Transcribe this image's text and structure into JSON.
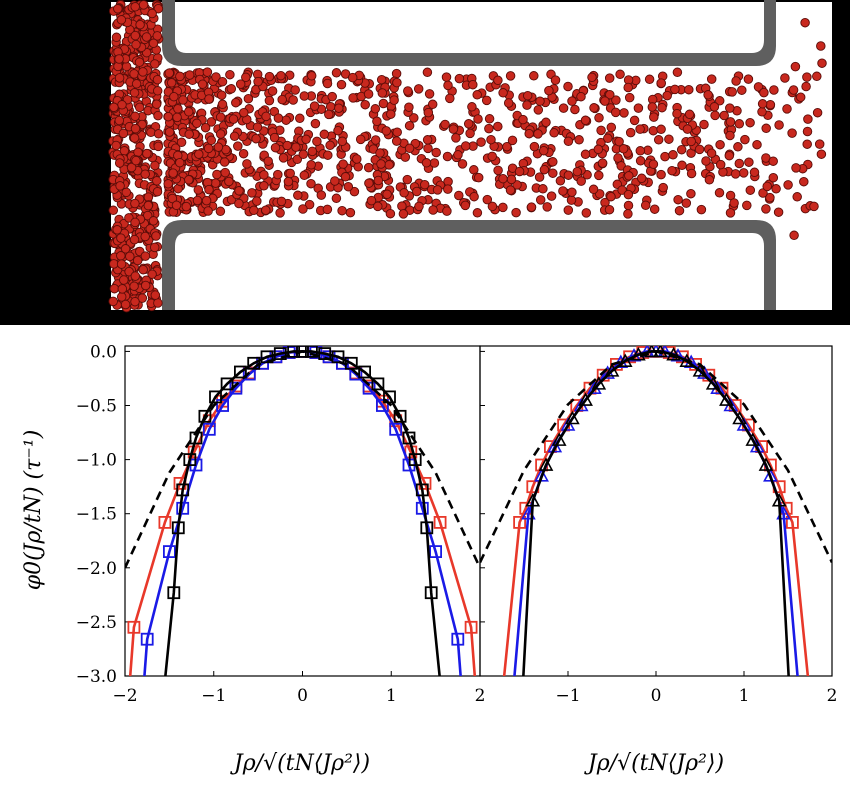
{
  "colors": {
    "background_black": "#000000",
    "channel_wall": "#5f5f5f",
    "particle": "#c8281e",
    "particle_edge": "#5a0c08",
    "series_red": "#e8382a",
    "series_blue": "#1a1ae6",
    "series_black": "#000000",
    "dashed_reference": "#000000"
  },
  "chart_data": [
    {
      "type": "line",
      "panel": "left",
      "ylabel": "φ0(Jρ/tN) (τ⁻¹)",
      "xlabel": "Jρ/√(tN⟨Jρ²⟩)",
      "xlim": [
        -2,
        2
      ],
      "ylim": [
        -3.0,
        0.05
      ],
      "xticks": [
        -2,
        -1,
        0,
        1,
        2
      ],
      "yticks": [
        0.0,
        -0.5,
        -1.0,
        -1.5,
        -2.0,
        -2.5,
        -3.0
      ],
      "xtick_labels": [
        "−2",
        "−1",
        "0",
        "1",
        "2"
      ],
      "ytick_labels": [
        "0.0",
        "−0.5",
        "−1.0",
        "−1.5",
        "−2.0",
        "−2.5",
        "−3.0"
      ],
      "legend": "none",
      "grid": false,
      "series": [
        {
          "color": "red",
          "line": "solid",
          "marker": "square",
          "x": [
            -1.9,
            -1.55,
            -1.38,
            -1.22,
            -1.05,
            -0.9,
            -0.75,
            -0.6,
            -0.45,
            -0.3,
            -0.15,
            0,
            0.15,
            0.3,
            0.45,
            0.6,
            0.75,
            0.9,
            1.05,
            1.22,
            1.38,
            1.55,
            1.9
          ],
          "y": [
            -2.55,
            -1.58,
            -1.22,
            -0.93,
            -0.64,
            -0.46,
            -0.32,
            -0.2,
            -0.11,
            -0.05,
            -0.01,
            0,
            -0.01,
            -0.05,
            -0.11,
            -0.2,
            -0.32,
            -0.46,
            -0.64,
            -0.93,
            -1.22,
            -1.58,
            -2.55
          ]
        },
        {
          "color": "blue",
          "line": "solid",
          "marker": "square",
          "x": [
            -1.75,
            -1.5,
            -1.35,
            -1.2,
            -1.05,
            -0.9,
            -0.75,
            -0.6,
            -0.45,
            -0.3,
            -0.15,
            0,
            0.15,
            0.3,
            0.45,
            0.6,
            0.75,
            0.9,
            1.05,
            1.2,
            1.35,
            1.5,
            1.75
          ],
          "y": [
            -2.66,
            -1.85,
            -1.45,
            -1.05,
            -0.72,
            -0.5,
            -0.34,
            -0.21,
            -0.11,
            -0.05,
            -0.01,
            0,
            -0.01,
            -0.05,
            -0.11,
            -0.21,
            -0.34,
            -0.5,
            -0.72,
            -1.05,
            -1.45,
            -1.85,
            -2.66
          ]
        },
        {
          "color": "black",
          "line": "solid",
          "marker": "square",
          "x": [
            -1.45,
            -1.4,
            -1.35,
            -1.27,
            -1.2,
            -1.1,
            -0.98,
            -0.85,
            -0.7,
            -0.55,
            -0.4,
            -0.25,
            -0.1,
            0,
            0.1,
            0.25,
            0.4,
            0.55,
            0.7,
            0.85,
            0.98,
            1.1,
            1.2,
            1.27,
            1.35,
            1.4,
            1.45
          ],
          "y": [
            -2.23,
            -1.63,
            -1.28,
            -1.0,
            -0.8,
            -0.6,
            -0.42,
            -0.3,
            -0.19,
            -0.11,
            -0.05,
            -0.02,
            0,
            0,
            0,
            -0.02,
            -0.05,
            -0.11,
            -0.19,
            -0.3,
            -0.42,
            -0.6,
            -0.8,
            -1.0,
            -1.28,
            -1.63,
            -2.23
          ]
        },
        {
          "color": "black",
          "line": "dashed",
          "marker": "none",
          "x": [
            -2,
            -1.5,
            -1,
            -0.5,
            0,
            0.5,
            1,
            1.5,
            2
          ],
          "y": [
            -2.0,
            -1.12,
            -0.5,
            -0.12,
            0,
            -0.12,
            -0.5,
            -1.12,
            -2.0
          ]
        }
      ]
    },
    {
      "type": "line",
      "panel": "right",
      "xlabel": "Jρ/√(tN⟨Jρ²⟩)",
      "xlim": [
        -2,
        2
      ],
      "ylim": [
        -3.0,
        0.05
      ],
      "xticks": [
        -2,
        -1,
        0,
        1,
        2
      ],
      "xtick_labels": [
        "",
        "−1",
        "0",
        "1",
        "2"
      ],
      "legend": "none",
      "grid": false,
      "series": [
        {
          "color": "red",
          "line": "solid",
          "marker": "square",
          "x": [
            -1.55,
            -1.48,
            -1.4,
            -1.3,
            -1.2,
            -1.05,
            -0.9,
            -0.75,
            -0.6,
            -0.45,
            -0.3,
            -0.15,
            0,
            0.15,
            0.3,
            0.45,
            0.6,
            0.75,
            0.9,
            1.05,
            1.2,
            1.3,
            1.4,
            1.48,
            1.55
          ],
          "y": [
            -1.58,
            -1.45,
            -1.25,
            -1.05,
            -0.88,
            -0.68,
            -0.5,
            -0.34,
            -0.22,
            -0.12,
            -0.05,
            -0.01,
            0,
            -0.01,
            -0.05,
            -0.12,
            -0.22,
            -0.34,
            -0.5,
            -0.68,
            -0.88,
            -1.05,
            -1.25,
            -1.45,
            -1.58
          ]
        },
        {
          "color": "blue",
          "line": "solid",
          "marker": "triangle",
          "x": [
            -1.45,
            -1.3,
            -1.15,
            -1.0,
            -0.85,
            -0.7,
            -0.55,
            -0.4,
            -0.25,
            -0.1,
            0,
            0.1,
            0.25,
            0.4,
            0.55,
            0.7,
            0.85,
            1.0,
            1.15,
            1.3,
            1.45
          ],
          "y": [
            -1.5,
            -1.15,
            -0.88,
            -0.68,
            -0.5,
            -0.34,
            -0.2,
            -0.1,
            -0.04,
            0,
            0,
            0,
            -0.04,
            -0.1,
            -0.2,
            -0.34,
            -0.5,
            -0.68,
            -0.88,
            -1.15,
            -1.5
          ]
        },
        {
          "color": "black",
          "line": "solid",
          "marker": "triangle",
          "x": [
            -1.4,
            -1.25,
            -1.1,
            -0.95,
            -0.8,
            -0.65,
            -0.5,
            -0.35,
            -0.2,
            -0.05,
            0.05,
            0.2,
            0.35,
            0.5,
            0.65,
            0.8,
            0.95,
            1.1,
            1.25,
            1.4
          ],
          "y": [
            -1.38,
            -1.05,
            -0.82,
            -0.62,
            -0.45,
            -0.3,
            -0.18,
            -0.09,
            -0.03,
            0,
            0,
            -0.03,
            -0.09,
            -0.18,
            -0.3,
            -0.45,
            -0.62,
            -0.82,
            -1.05,
            -1.38
          ]
        },
        {
          "color": "black",
          "line": "dashed",
          "marker": "none",
          "x": [
            -2,
            -1.5,
            -1,
            -0.5,
            0,
            0.5,
            1,
            1.5,
            2
          ],
          "y": [
            -1.95,
            -1.1,
            -0.49,
            -0.12,
            0,
            -0.12,
            -0.49,
            -1.1,
            -1.95
          ]
        }
      ]
    }
  ]
}
